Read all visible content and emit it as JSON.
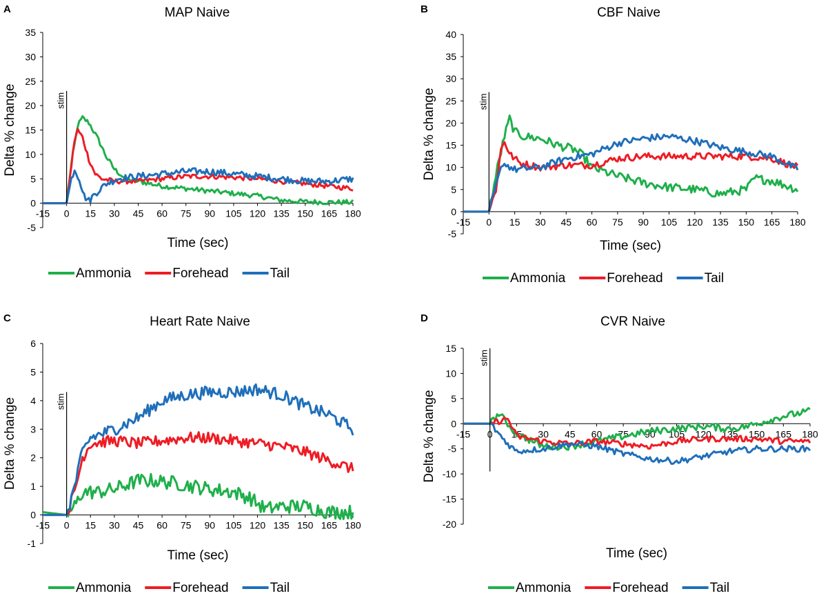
{
  "series_colors": {
    "Ammonia": "#1faf4b",
    "Forehead": "#ee1c24",
    "Tail": "#1f6fba"
  },
  "chart_data": [
    {
      "panel": "A",
      "type": "line",
      "title": "MAP Naive",
      "xlabel": "Time (sec)",
      "ylabel": "Delta % change",
      "xlim": [
        -15,
        180
      ],
      "ylim": [
        -5,
        35
      ],
      "xticks": [
        -15,
        0,
        15,
        30,
        45,
        60,
        75,
        90,
        105,
        120,
        135,
        150,
        165,
        180
      ],
      "yticks": [
        -5,
        0,
        5,
        10,
        15,
        20,
        25,
        30,
        35
      ],
      "stim_label": "stim",
      "stim_x": 0,
      "stim_range": [
        0,
        23
      ],
      "legend": [
        "Ammonia",
        "Forehead",
        "Tail"
      ],
      "series": [
        {
          "name": "Ammonia",
          "keypoints": [
            [
              -15,
              0
            ],
            [
              0,
              0
            ],
            [
              3,
              8
            ],
            [
              7,
              16
            ],
            [
              10,
              17.5
            ],
            [
              14,
              16.5
            ],
            [
              20,
              13
            ],
            [
              25,
              9.5
            ],
            [
              30,
              7
            ],
            [
              37,
              5
            ],
            [
              45,
              4.5
            ],
            [
              60,
              3.5
            ],
            [
              75,
              3
            ],
            [
              90,
              2.5
            ],
            [
              105,
              2
            ],
            [
              120,
              1.5
            ],
            [
              135,
              0.6
            ],
            [
              150,
              0.3
            ],
            [
              165,
              0.2
            ],
            [
              180,
              0.2
            ]
          ],
          "noise": 0.5
        },
        {
          "name": "Forehead",
          "keypoints": [
            [
              -15,
              0
            ],
            [
              0,
              0
            ],
            [
              2,
              5
            ],
            [
              5,
              13
            ],
            [
              7,
              15
            ],
            [
              10,
              13.5
            ],
            [
              14,
              9
            ],
            [
              18,
              6
            ],
            [
              22,
              5
            ],
            [
              30,
              4.5
            ],
            [
              45,
              4.5
            ],
            [
              60,
              5
            ],
            [
              75,
              5.5
            ],
            [
              90,
              5.5
            ],
            [
              105,
              5.3
            ],
            [
              120,
              5
            ],
            [
              135,
              4.5
            ],
            [
              150,
              4
            ],
            [
              165,
              3.5
            ],
            [
              180,
              3
            ]
          ],
          "noise": 0.5
        },
        {
          "name": "Tail",
          "keypoints": [
            [
              -15,
              0
            ],
            [
              0,
              0
            ],
            [
              3,
              5
            ],
            [
              5,
              7
            ],
            [
              8,
              5
            ],
            [
              11,
              1.5
            ],
            [
              14,
              0.5
            ],
            [
              18,
              2
            ],
            [
              25,
              4
            ],
            [
              32,
              5
            ],
            [
              45,
              5.5
            ],
            [
              60,
              6
            ],
            [
              75,
              6.5
            ],
            [
              90,
              6.5
            ],
            [
              105,
              6
            ],
            [
              120,
              5.5
            ],
            [
              135,
              5
            ],
            [
              150,
              4.5
            ],
            [
              165,
              4.5
            ],
            [
              180,
              5
            ]
          ],
          "noise": 0.7
        }
      ]
    },
    {
      "panel": "B",
      "type": "line",
      "title": "CBF Naive",
      "xlabel": "Time (sec)",
      "ylabel": "Delta % change",
      "xlim": [
        -15,
        180
      ],
      "ylim": [
        -5,
        40
      ],
      "xticks": [
        -15,
        0,
        15,
        30,
        45,
        60,
        75,
        90,
        105,
        120,
        135,
        150,
        165,
        180
      ],
      "yticks": [
        -5,
        0,
        5,
        10,
        15,
        20,
        25,
        30,
        35,
        40
      ],
      "stim_label": "stim",
      "stim_x": 0,
      "stim_range": [
        0,
        27
      ],
      "legend": [
        "Ammonia",
        "Forehead",
        "Tail"
      ],
      "series": [
        {
          "name": "Ammonia",
          "keypoints": [
            [
              -15,
              0
            ],
            [
              0,
              0
            ],
            [
              5,
              10
            ],
            [
              9,
              17
            ],
            [
              12,
              21
            ],
            [
              15,
              18
            ],
            [
              20,
              17
            ],
            [
              30,
              16.5
            ],
            [
              40,
              15
            ],
            [
              50,
              14
            ],
            [
              55,
              12.5
            ],
            [
              60,
              10
            ],
            [
              75,
              8
            ],
            [
              90,
              6.5
            ],
            [
              105,
              5.5
            ],
            [
              120,
              5
            ],
            [
              135,
              4
            ],
            [
              150,
              5
            ],
            [
              155,
              7.5
            ],
            [
              165,
              7
            ],
            [
              180,
              5
            ]
          ],
          "noise": 1.0
        },
        {
          "name": "Forehead",
          "keypoints": [
            [
              -15,
              0
            ],
            [
              0,
              0
            ],
            [
              4,
              5
            ],
            [
              7,
              14
            ],
            [
              9,
              16
            ],
            [
              12,
              13
            ],
            [
              18,
              11
            ],
            [
              30,
              10
            ],
            [
              45,
              10.5
            ],
            [
              60,
              10.5
            ],
            [
              75,
              12
            ],
            [
              90,
              12.5
            ],
            [
              105,
              12.5
            ],
            [
              120,
              12.5
            ],
            [
              135,
              12.5
            ],
            [
              150,
              12.5
            ],
            [
              165,
              12
            ],
            [
              180,
              10
            ]
          ],
          "noise": 0.8
        },
        {
          "name": "Tail",
          "keypoints": [
            [
              -15,
              0
            ],
            [
              0,
              0
            ],
            [
              5,
              7
            ],
            [
              8,
              11
            ],
            [
              15,
              9.5
            ],
            [
              30,
              10
            ],
            [
              45,
              12
            ],
            [
              60,
              13
            ],
            [
              75,
              15.5
            ],
            [
              90,
              16.5
            ],
            [
              105,
              17
            ],
            [
              120,
              16
            ],
            [
              135,
              14.5
            ],
            [
              150,
              13.5
            ],
            [
              165,
              12.5
            ],
            [
              180,
              9.5
            ]
          ],
          "noise": 0.8
        }
      ]
    },
    {
      "panel": "C",
      "type": "line",
      "title": "Heart Rate Naive",
      "xlabel": "Time (sec)",
      "ylabel": "Delta % change",
      "xlim": [
        -15,
        180
      ],
      "ylim": [
        -1,
        6
      ],
      "xticks": [
        -15,
        0,
        15,
        30,
        45,
        60,
        75,
        90,
        105,
        120,
        135,
        150,
        165,
        180
      ],
      "yticks": [
        -1,
        0,
        1,
        2,
        3,
        4,
        5,
        6
      ],
      "stim_label": "stim",
      "stim_x": 0,
      "stim_range": [
        0,
        4.3
      ],
      "legend": [
        "Ammonia",
        "Forehead",
        "Tail"
      ],
      "series": [
        {
          "name": "Ammonia",
          "keypoints": [
            [
              -15,
              0.1
            ],
            [
              0,
              0
            ],
            [
              5,
              0.3
            ],
            [
              10,
              0.8
            ],
            [
              20,
              0.8
            ],
            [
              30,
              0.9
            ],
            [
              45,
              1.2
            ],
            [
              55,
              1.2
            ],
            [
              70,
              1.1
            ],
            [
              90,
              0.9
            ],
            [
              105,
              0.8
            ],
            [
              115,
              0.6
            ],
            [
              125,
              0.2
            ],
            [
              135,
              0.3
            ],
            [
              150,
              0.3
            ],
            [
              165,
              0.1
            ],
            [
              180,
              0.1
            ]
          ],
          "noise": 0.25
        },
        {
          "name": "Forehead",
          "keypoints": [
            [
              -15,
              0
            ],
            [
              0,
              0
            ],
            [
              5,
              0.8
            ],
            [
              10,
              2
            ],
            [
              15,
              2.5
            ],
            [
              30,
              2.6
            ],
            [
              45,
              2.5
            ],
            [
              60,
              2.6
            ],
            [
              75,
              2.7
            ],
            [
              90,
              2.7
            ],
            [
              105,
              2.6
            ],
            [
              120,
              2.5
            ],
            [
              135,
              2.4
            ],
            [
              150,
              2.2
            ],
            [
              165,
              1.9
            ],
            [
              180,
              1.6
            ]
          ],
          "noise": 0.2
        },
        {
          "name": "Tail",
          "keypoints": [
            [
              -15,
              0
            ],
            [
              0,
              0
            ],
            [
              5,
              1.0
            ],
            [
              10,
              2.2
            ],
            [
              15,
              2.7
            ],
            [
              30,
              3.0
            ],
            [
              45,
              3.4
            ],
            [
              60,
              4.0
            ],
            [
              75,
              4.2
            ],
            [
              90,
              4.3
            ],
            [
              105,
              4.3
            ],
            [
              120,
              4.4
            ],
            [
              135,
              4.2
            ],
            [
              150,
              3.8
            ],
            [
              165,
              3.5
            ],
            [
              180,
              3.0
            ]
          ],
          "noise": 0.22
        }
      ]
    },
    {
      "panel": "D",
      "type": "line",
      "title": "CVR Naive",
      "xlabel": "Time (sec)",
      "ylabel": "Delta % change",
      "xlim": [
        -15,
        180
      ],
      "ylim": [
        -20,
        15
      ],
      "xticks": [
        -15,
        0,
        15,
        30,
        45,
        60,
        75,
        90,
        105,
        120,
        135,
        150,
        165,
        180
      ],
      "yticks": [
        -20,
        -15,
        -10,
        -5,
        0,
        5,
        10,
        15
      ],
      "stim_label": "stim",
      "stim_x": 0,
      "stim_range": [
        -9.5,
        15
      ],
      "legend": [
        "Ammonia",
        "Forehead",
        "Tail"
      ],
      "series": [
        {
          "name": "Ammonia",
          "keypoints": [
            [
              -15,
              0
            ],
            [
              0,
              0
            ],
            [
              5,
              2
            ],
            [
              10,
              0
            ],
            [
              15,
              -2
            ],
            [
              30,
              -4.5
            ],
            [
              45,
              -4.5
            ],
            [
              60,
              -3.5
            ],
            [
              75,
              -2.5
            ],
            [
              90,
              -1.5
            ],
            [
              105,
              -1
            ],
            [
              120,
              -0.5
            ],
            [
              135,
              -1
            ],
            [
              145,
              -0.5
            ],
            [
              150,
              0
            ],
            [
              165,
              1.5
            ],
            [
              180,
              2.5
            ]
          ],
          "noise": 0.7
        },
        {
          "name": "Forehead",
          "keypoints": [
            [
              -15,
              0
            ],
            [
              0,
              0
            ],
            [
              5,
              0.5
            ],
            [
              10,
              1
            ],
            [
              15,
              -2.5
            ],
            [
              30,
              -3.5
            ],
            [
              45,
              -4
            ],
            [
              60,
              -3.5
            ],
            [
              75,
              -4
            ],
            [
              90,
              -4.5
            ],
            [
              105,
              -3.5
            ],
            [
              120,
              -3
            ],
            [
              135,
              -3
            ],
            [
              150,
              -3
            ],
            [
              165,
              -3.5
            ],
            [
              180,
              -3.5
            ]
          ],
          "noise": 0.6
        },
        {
          "name": "Tail",
          "keypoints": [
            [
              -15,
              0
            ],
            [
              0,
              0
            ],
            [
              5,
              -2
            ],
            [
              10,
              -4
            ],
            [
              15,
              -5.5
            ],
            [
              30,
              -5
            ],
            [
              45,
              -4
            ],
            [
              60,
              -4.5
            ],
            [
              75,
              -6
            ],
            [
              90,
              -7
            ],
            [
              105,
              -7.5
            ],
            [
              120,
              -6.5
            ],
            [
              135,
              -5.5
            ],
            [
              150,
              -5
            ],
            [
              165,
              -5
            ],
            [
              180,
              -5
            ]
          ],
          "noise": 0.6
        }
      ]
    }
  ]
}
